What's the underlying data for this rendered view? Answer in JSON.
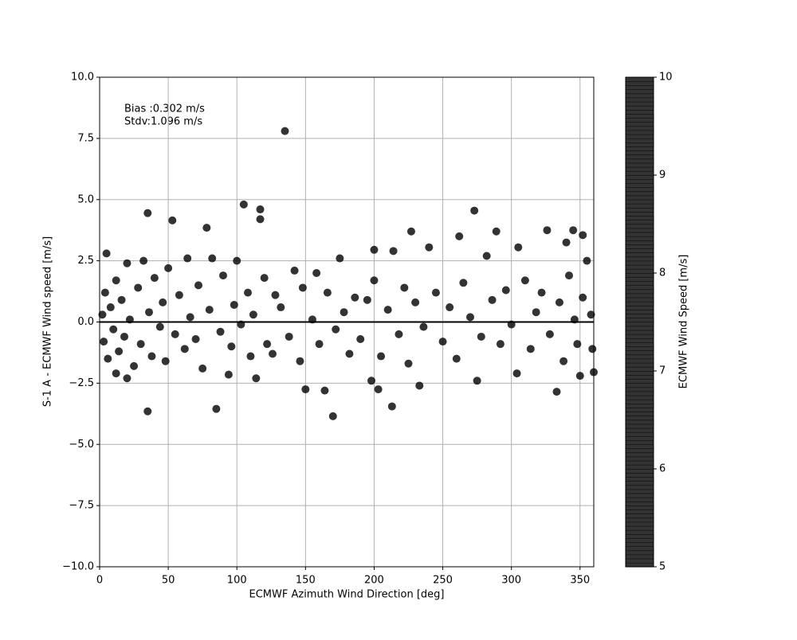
{
  "chart_data": {
    "type": "scatter",
    "x_label": "ECMWF Azimuth Wind Direction [deg]",
    "y_label": "S-1 A - ECMWF Wind speed [m/s]",
    "annotations": [
      "Bias :0.302 m/s",
      "Stdv:1.096 m/s"
    ],
    "colorbar_label": "ECMWF Wind Speed [m/s]",
    "colormap": "viridis",
    "clim": [
      5,
      10
    ],
    "cticks": [
      5,
      6,
      7,
      8,
      9,
      10
    ],
    "xlim": [
      0,
      360
    ],
    "xticks": [
      0,
      50,
      100,
      150,
      200,
      250,
      300,
      350
    ],
    "ylim": [
      -10,
      10
    ],
    "yticks": [
      {
        "value": -10,
        "label": "−10.0"
      },
      {
        "value": -7.5,
        "label": "−7.5"
      },
      {
        "value": -5,
        "label": "−5.0"
      },
      {
        "value": -2.5,
        "label": "−2.5"
      },
      {
        "value": 0,
        "label": "0.0"
      },
      {
        "value": 2.5,
        "label": "2.5"
      },
      {
        "value": 5,
        "label": "5.0"
      },
      {
        "value": 7.5,
        "label": "7.5"
      },
      {
        "value": 10,
        "label": "10.0"
      }
    ],
    "grid": true,
    "hline": 0,
    "x": [
      135,
      105,
      117,
      117,
      35,
      53,
      78,
      273,
      345,
      227,
      289,
      326,
      340,
      352,
      262,
      240,
      305,
      200,
      214,
      35,
      85,
      170,
      213,
      150,
      164,
      333,
      233,
      275,
      94,
      114,
      20,
      12,
      304,
      198,
      203,
      350,
      360,
      2,
      3,
      4,
      5,
      6,
      8,
      10,
      12,
      14,
      16,
      18,
      20,
      22,
      25,
      28,
      30,
      32,
      36,
      38,
      40,
      44,
      46,
      48,
      50,
      55,
      58,
      62,
      64,
      66,
      70,
      72,
      75,
      80,
      82,
      88,
      90,
      96,
      98,
      100,
      103,
      108,
      110,
      112,
      120,
      122,
      126,
      128,
      132,
      138,
      142,
      146,
      148,
      155,
      158,
      160,
      166,
      172,
      175,
      178,
      182,
      186,
      190,
      195,
      200,
      205,
      210,
      218,
      222,
      225,
      230,
      236,
      245,
      250,
      255,
      260,
      265,
      270,
      278,
      282,
      286,
      292,
      296,
      300,
      310,
      314,
      318,
      322,
      328,
      335,
      338,
      342,
      346,
      348,
      352,
      355,
      358,
      359
    ],
    "values": [
      7.8,
      4.8,
      4.6,
      4.2,
      4.45,
      4.15,
      3.85,
      4.55,
      3.75,
      3.7,
      3.7,
      3.75,
      3.25,
      3.55,
      3.5,
      3.05,
      3.05,
      2.95,
      2.9,
      -3.65,
      -3.55,
      -3.85,
      -3.45,
      -2.75,
      -2.8,
      -2.85,
      -2.6,
      -2.4,
      -2.15,
      -2.3,
      -2.3,
      -2.1,
      -2.1,
      -2.4,
      -2.75,
      -2.2,
      -2.05,
      0.3,
      -0.8,
      1.2,
      2.8,
      -1.5,
      0.6,
      -0.3,
      1.7,
      -1.2,
      0.9,
      -0.6,
      2.4,
      0.1,
      -1.8,
      1.4,
      -0.9,
      2.5,
      0.4,
      -1.4,
      1.8,
      -0.2,
      0.8,
      -1.6,
      2.2,
      -0.5,
      1.1,
      -1.1,
      2.6,
      0.2,
      -0.7,
      1.5,
      -1.9,
      0.5,
      2.6,
      -0.4,
      1.9,
      -1.0,
      0.7,
      2.5,
      -0.1,
      1.2,
      -1.4,
      0.3,
      1.8,
      -0.9,
      -1.3,
      1.1,
      0.6,
      -0.6,
      2.1,
      -1.6,
      1.4,
      0.1,
      2.0,
      -0.9,
      1.2,
      -0.3,
      2.6,
      0.4,
      -1.3,
      1.0,
      -0.7,
      0.9,
      1.7,
      -1.4,
      0.5,
      -0.5,
      1.4,
      -1.7,
      0.8,
      -0.2,
      1.2,
      -0.8,
      0.6,
      -1.5,
      1.6,
      0.2,
      -0.6,
      2.7,
      0.9,
      -0.9,
      1.3,
      -0.1,
      1.7,
      -1.1,
      0.4,
      1.2,
      -0.5,
      0.8,
      -1.6,
      1.9,
      0.1,
      -0.9,
      1.0,
      2.5,
      0.3,
      -1.1
    ],
    "color_values": [
      7.5,
      8,
      8.5,
      7,
      9,
      6,
      7.5,
      7.5,
      5.5,
      6.5,
      5.5,
      8,
      7,
      8,
      7.5,
      7.5,
      7.5,
      9.5,
      9,
      10,
      5.5,
      8,
      7,
      7,
      10,
      8,
      6.5,
      9,
      5.5,
      9,
      5.5,
      5.5,
      6.5,
      6.5,
      9,
      7.5,
      8,
      7,
      8,
      5.5,
      7.5,
      9,
      6,
      8.5,
      5.5,
      7,
      9.5,
      6.5,
      5.5,
      8,
      7.5,
      6,
      9,
      6.5,
      7,
      8.5,
      5.5,
      9.5,
      6,
      7.5,
      6.5,
      10,
      8,
      7,
      7.5,
      5.5,
      8.5,
      6,
      9,
      7,
      5.5,
      8,
      6.5,
      7.5,
      5.5,
      7,
      9,
      6,
      8,
      5.5,
      6,
      7.5,
      10,
      5.5,
      6,
      8.5,
      9,
      8,
      5.5,
      7,
      10,
      6,
      5.5,
      9,
      10,
      7.5,
      8.5,
      5.5,
      7,
      8,
      10,
      7.5,
      5.5,
      9,
      6,
      8,
      5.5,
      7,
      9,
      8,
      6.5,
      7,
      5.5,
      8.5,
      7,
      5.5,
      9,
      6.5,
      7.5,
      10,
      5.5,
      8.5,
      6,
      7,
      8,
      5.5,
      6,
      7,
      9.5,
      7.5,
      6,
      6,
      5.5,
      7.5
    ]
  }
}
